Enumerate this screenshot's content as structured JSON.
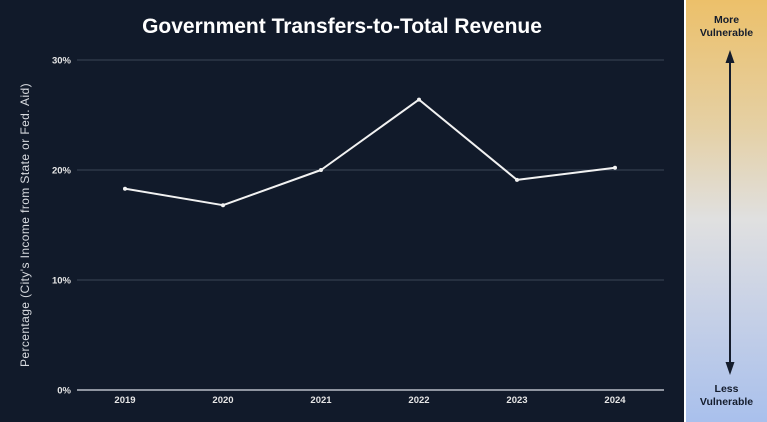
{
  "chart_data": {
    "type": "line",
    "title": "Government Transfers-to-Total Revenue",
    "xlabel": "",
    "ylabel": "Percentage (City's Income from State or Fed. Aid)",
    "categories": [
      "2019",
      "2020",
      "2021",
      "2022",
      "2023",
      "2024"
    ],
    "series": [
      {
        "name": "Government Transfers-to-Total Revenue",
        "values": [
          18.3,
          16.8,
          20.0,
          26.4,
          19.1,
          20.2
        ]
      }
    ],
    "ylim": [
      0,
      30
    ],
    "yticks": [
      0,
      10,
      20,
      30
    ],
    "ytick_labels": [
      "0%",
      "10%",
      "20%",
      "30%"
    ],
    "grid": true,
    "legend": "none",
    "line_color": "#f2f2f2",
    "background_color": "#111a2a"
  },
  "vulnerability_scale": {
    "top_label": [
      "More",
      "Vulnerable"
    ],
    "bottom_label": [
      "Less",
      "Vulnerable"
    ],
    "top_color": "#ecc06a",
    "bottom_color": "#a9c0ec"
  }
}
